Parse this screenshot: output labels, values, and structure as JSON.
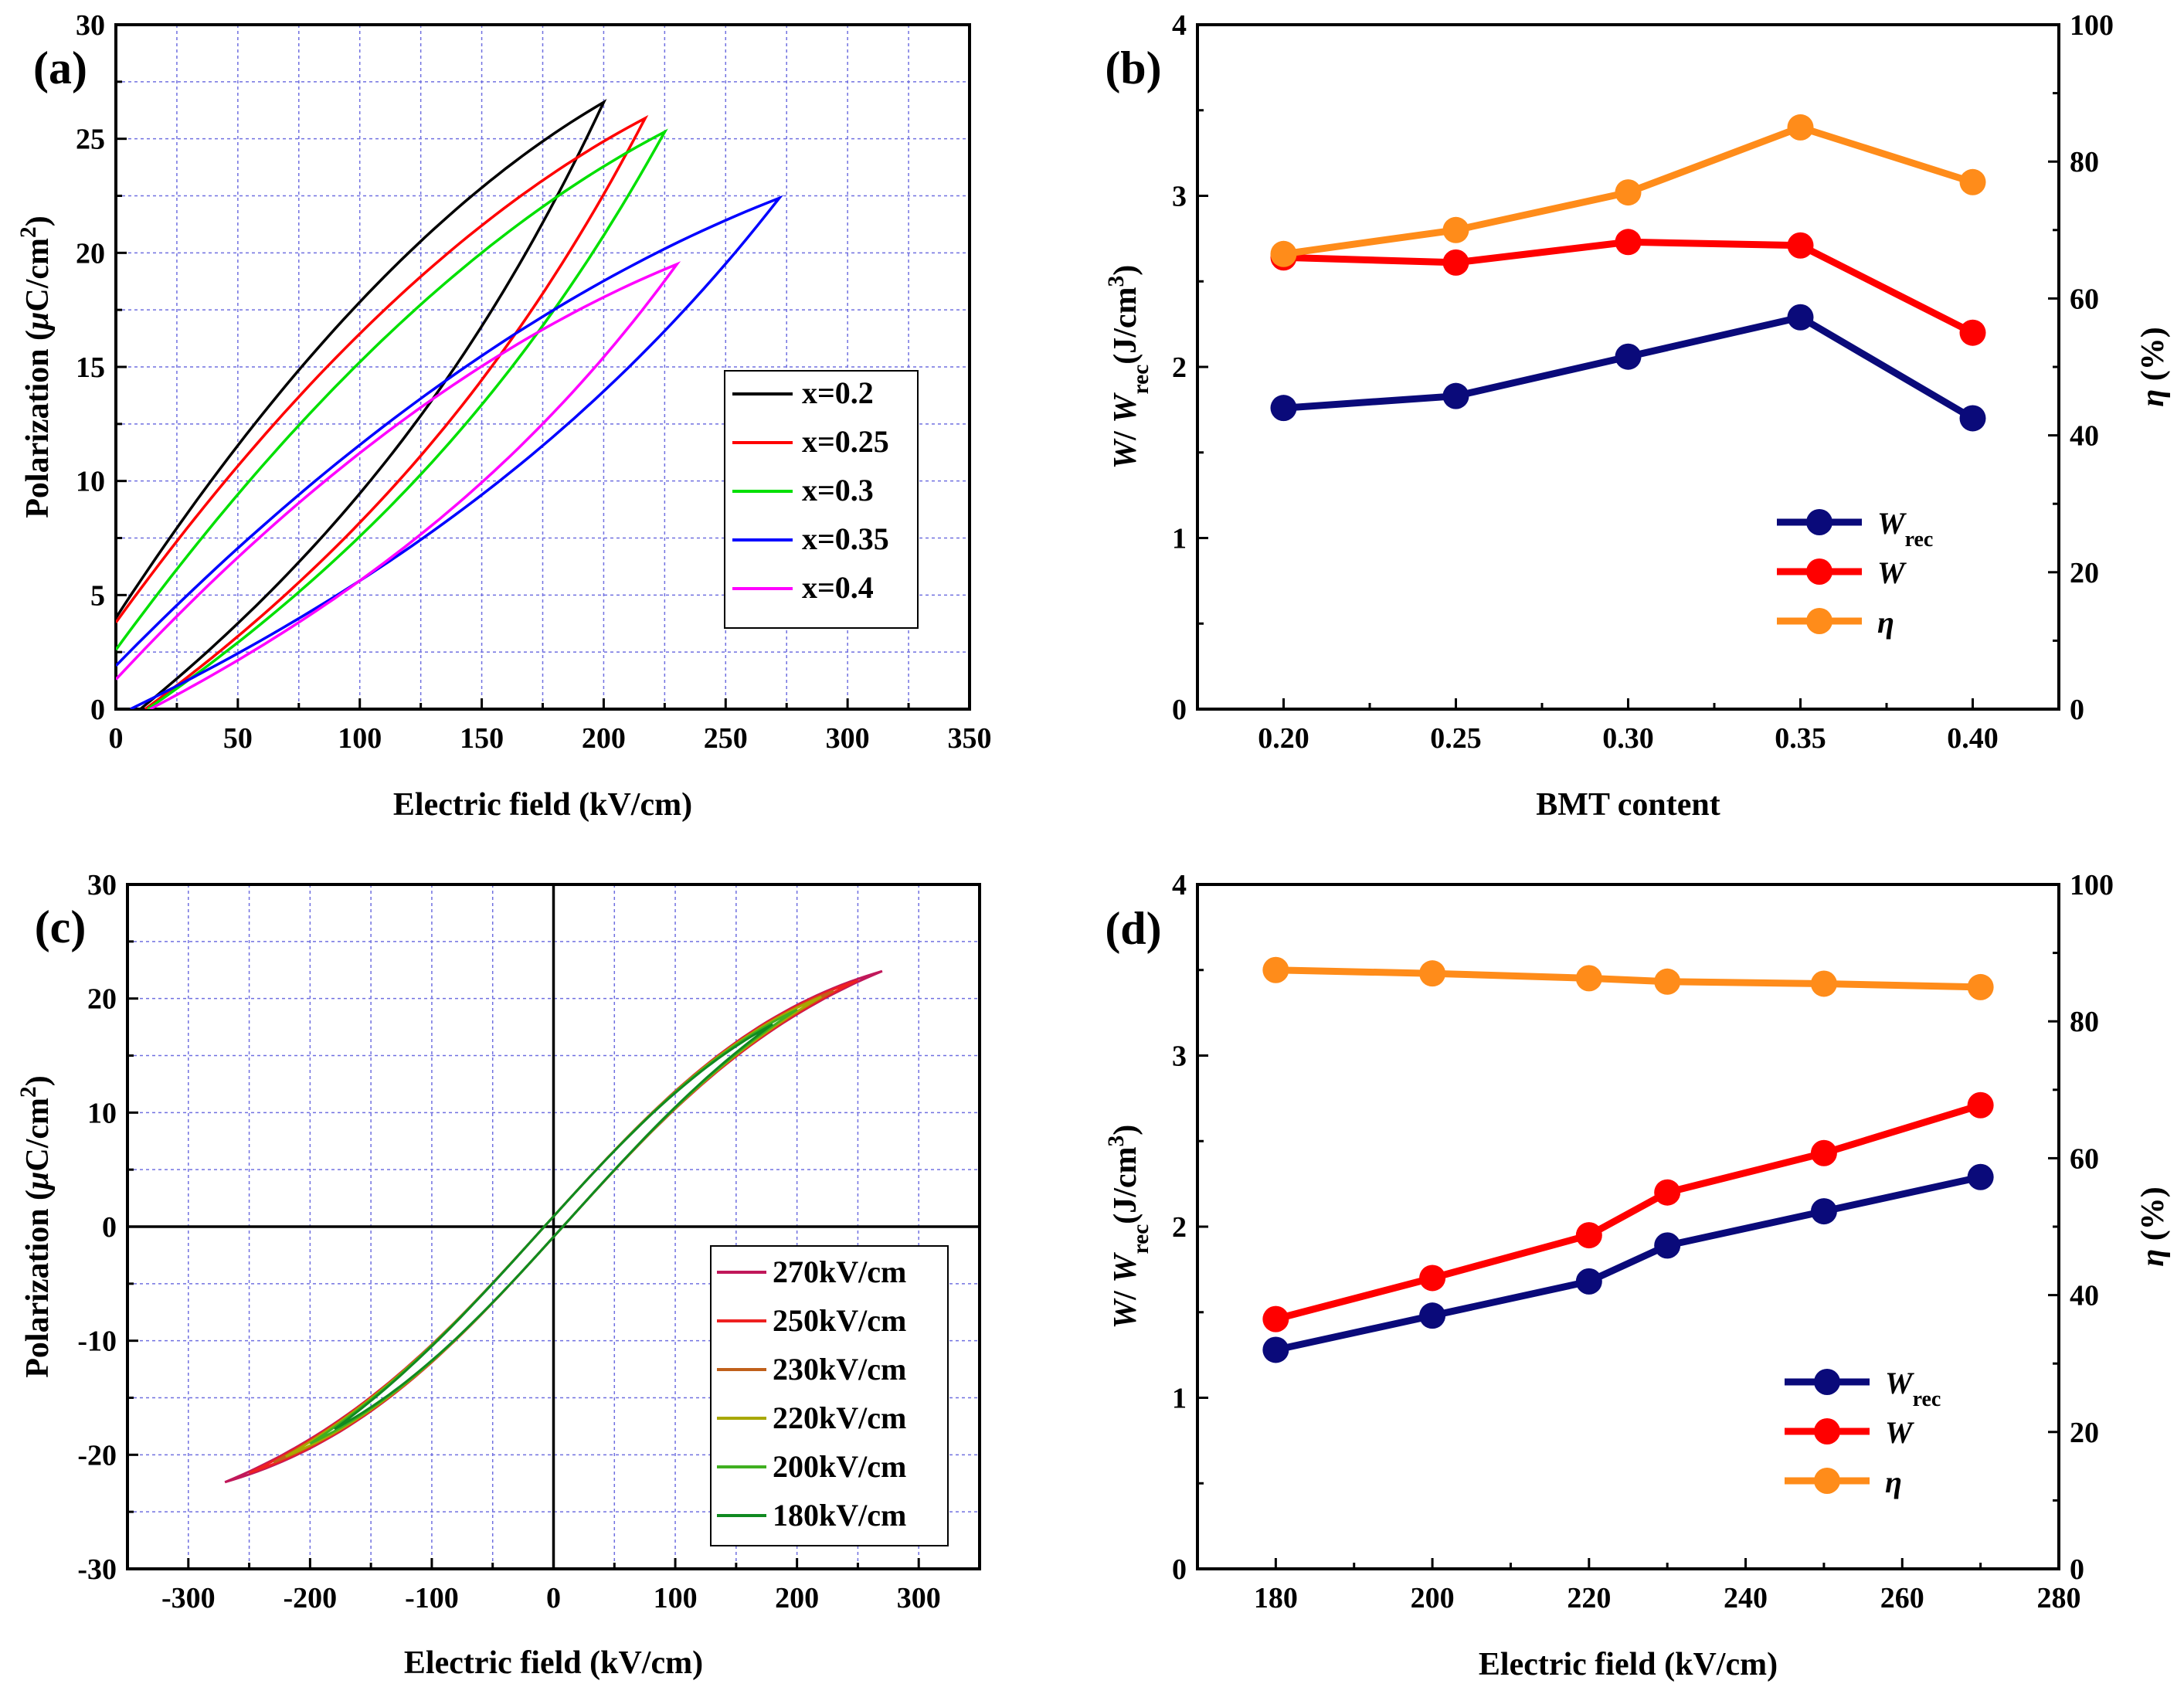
{
  "chart_data": [
    {
      "panel": "(a)",
      "type": "line",
      "xlabel": "Electric field (kV/cm)",
      "ylabel": "Polarization (μC/cm2)",
      "ylabel_parts": [
        "Polarization (",
        "μ",
        "C/cm",
        "2",
        ")"
      ],
      "xlim": [
        0,
        350
      ],
      "ylim": [
        0,
        30
      ],
      "xticks": [
        0,
        50,
        100,
        150,
        200,
        250,
        300,
        350
      ],
      "yticks": [
        0,
        5,
        10,
        15,
        20,
        25,
        30
      ],
      "grid": true,
      "legend": "center-right",
      "series": [
        {
          "name": "x=0.2",
          "color": "#000000",
          "emax": 200,
          "pmax": 26.6,
          "pr": 4.0,
          "ezero": 10
        },
        {
          "name": "x=0.25",
          "color": "#ff0000",
          "emax": 217,
          "pmax": 25.9,
          "pr": 3.8,
          "ezero": 12
        },
        {
          "name": "x=0.3",
          "color": "#00e000",
          "emax": 225,
          "pmax": 25.3,
          "pr": 2.6,
          "ezero": 13
        },
        {
          "name": "x=0.35",
          "color": "#0000ff",
          "emax": 272,
          "pmax": 22.4,
          "pr": 1.9,
          "ezero": 6
        },
        {
          "name": "x=0.4",
          "color": "#ff00ff",
          "emax": 230,
          "pmax": 19.5,
          "pr": 1.3,
          "ezero": 14
        }
      ]
    },
    {
      "panel": "(b)",
      "type": "line",
      "xlabel": "BMT content",
      "ylabel_left": "W/ Wrec(J/cm3)",
      "ylabel_left_parts": [
        "W",
        "/ ",
        "W",
        "rec",
        "(J/cm",
        "3",
        ")"
      ],
      "ylabel_right": "η (%)",
      "ylabel_right_parts": [
        "η",
        " (%)"
      ],
      "xlim": [
        0.175,
        0.425
      ],
      "ylim": [
        0,
        4
      ],
      "ylim_right": [
        0,
        100
      ],
      "xticks": [
        "0.20",
        "0.25",
        "0.30",
        "0.35",
        "0.40"
      ],
      "yticks": [
        0,
        1,
        2,
        3,
        4
      ],
      "yticks_right": [
        0,
        20,
        40,
        60,
        80,
        100
      ],
      "x": [
        0.2,
        0.25,
        0.3,
        0.35,
        0.4
      ],
      "legend": "bottom-right",
      "series": [
        {
          "name": "Wrec",
          "name_main": "W",
          "name_sub": "rec",
          "color": "#0a0a7a",
          "axis": "left",
          "values": [
            1.76,
            1.83,
            2.06,
            2.29,
            1.7
          ]
        },
        {
          "name": "W",
          "name_main": "W",
          "name_sub": "",
          "color": "#ff0000",
          "axis": "left",
          "values": [
            2.64,
            2.61,
            2.73,
            2.71,
            2.2
          ]
        },
        {
          "name": "η",
          "name_main": "η",
          "name_sub": "",
          "color": "#ff8c1a",
          "axis": "right",
          "values": [
            66.5,
            70.0,
            75.5,
            85.0,
            77.0
          ]
        }
      ]
    },
    {
      "panel": "(c)",
      "type": "line",
      "xlabel": "Electric field (kV/cm)",
      "ylabel": "Polarization (μC/cm2)",
      "ylabel_parts": [
        "Polarization (",
        "μ",
        "C/cm",
        "2",
        ")"
      ],
      "xlim": [
        -350,
        350
      ],
      "ylim": [
        -30,
        30
      ],
      "xticks": [
        -300,
        -200,
        -100,
        0,
        100,
        200,
        300
      ],
      "yticks": [
        -30,
        -20,
        -10,
        0,
        10,
        20,
        30
      ],
      "grid": true,
      "legend": "bottom-right",
      "series": [
        {
          "name": "270kV/cm",
          "color": "#c0185a",
          "emax": 270
        },
        {
          "name": "250kV/cm",
          "color": "#ee2020",
          "emax": 250
        },
        {
          "name": "230kV/cm",
          "color": "#c0601a",
          "emax": 230
        },
        {
          "name": "220kV/cm",
          "color": "#a8a800",
          "emax": 220
        },
        {
          "name": "200kV/cm",
          "color": "#40b020",
          "emax": 200
        },
        {
          "name": "180kV/cm",
          "color": "#108a20",
          "emax": 180
        }
      ]
    },
    {
      "panel": "(d)",
      "type": "line",
      "xlabel": "Electric field (kV/cm)",
      "ylabel_left": "W/ Wrec(J/cm3)",
      "ylabel_left_parts": [
        "W",
        "/ ",
        "W",
        "rec",
        "(J/cm",
        "3",
        ")"
      ],
      "ylabel_right": "η (%)",
      "ylabel_right_parts": [
        "η",
        " (%)"
      ],
      "xlim": [
        170,
        280
      ],
      "ylim": [
        0,
        4
      ],
      "ylim_right": [
        0,
        100
      ],
      "xticks": [
        180,
        200,
        220,
        240,
        260,
        280
      ],
      "yticks": [
        0,
        1,
        2,
        3,
        4
      ],
      "yticks_right": [
        0,
        20,
        40,
        60,
        80,
        100
      ],
      "x": [
        180,
        200,
        220,
        230,
        250,
        270
      ],
      "legend": "bottom-right",
      "series": [
        {
          "name": "Wrec",
          "name_main": "W",
          "name_sub": "rec",
          "color": "#0a0a7a",
          "axis": "left",
          "values": [
            1.28,
            1.48,
            1.68,
            1.89,
            2.09,
            2.29
          ]
        },
        {
          "name": "W",
          "name_main": "W",
          "name_sub": "",
          "color": "#ff0000",
          "axis": "left",
          "values": [
            1.46,
            1.7,
            1.95,
            2.2,
            2.43,
            2.71
          ]
        },
        {
          "name": "η",
          "name_main": "η",
          "name_sub": "",
          "color": "#ff8c1a",
          "axis": "right",
          "values": [
            87.5,
            87.0,
            86.3,
            85.8,
            85.5,
            85.0
          ]
        }
      ]
    }
  ]
}
